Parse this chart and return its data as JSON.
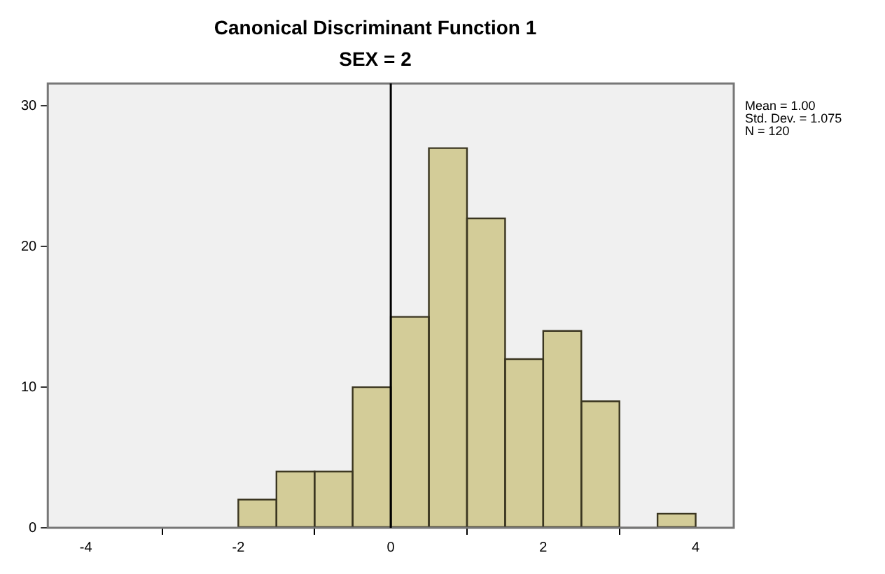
{
  "chart_data": {
    "type": "histogram",
    "title": "Canonical Discriminant Function 1",
    "subtitle": "SEX = 2",
    "bins": [
      -2,
      -1.5,
      -1,
      -0.5,
      0,
      0.5,
      1,
      1.5,
      2,
      2.5,
      3,
      3.5,
      4
    ],
    "values": [
      2,
      4,
      4,
      10,
      15,
      27,
      22,
      12,
      14,
      9,
      0,
      1
    ],
    "color": "#d3cc98",
    "xlim": [
      -4.5,
      4.5
    ],
    "xticks": [
      -4,
      -2,
      0,
      2,
      4
    ],
    "ylim": [
      0,
      31.6
    ],
    "yticks": [
      0,
      10,
      20,
      30
    ],
    "ref_lines": [
      {
        "axis": "x",
        "value": 0,
        "color": "#000000"
      }
    ],
    "annotations": [
      "Mean = 1.00",
      "Std. Dev. = 1.075",
      "N = 120"
    ],
    "legend": false
  }
}
